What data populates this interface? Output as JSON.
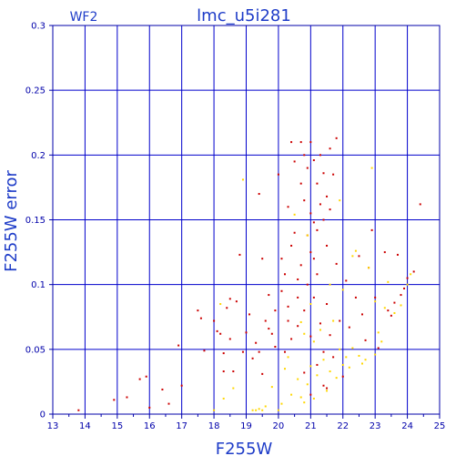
{
  "colors": {
    "frame": "#0000aa",
    "grid": "#0000cc",
    "text": "#1e3cc8",
    "tick_text": "#0000aa",
    "series_primary": "#cc0000",
    "series_secondary": "#ffd700"
  },
  "chart_data": {
    "type": "scatter",
    "title": "lmc_u5i281",
    "subtitle": "WF2",
    "xlabel": "F255W",
    "ylabel": "F255W error",
    "xlim": [
      13,
      25
    ],
    "ylim": [
      0,
      0.3
    ],
    "x_ticks": [
      13,
      14,
      15,
      16,
      17,
      18,
      19,
      20,
      21,
      22,
      23,
      24,
      25
    ],
    "y_ticks": [
      0,
      0.05,
      0.1,
      0.15,
      0.2,
      0.25,
      0.3
    ],
    "y_tick_labels": [
      "0",
      "0.05",
      "0.1",
      "0.15",
      "0.2",
      "0.25",
      "0.3"
    ],
    "grid": true,
    "series": [
      {
        "color": "#cc0000",
        "points": [
          [
            13.8,
            0.003
          ],
          [
            14.9,
            0.011
          ],
          [
            15.3,
            0.013
          ],
          [
            15.7,
            0.027
          ],
          [
            15.9,
            0.029
          ],
          [
            16.0,
            0.005
          ],
          [
            16.4,
            0.019
          ],
          [
            16.6,
            0.008
          ],
          [
            16.9,
            0.053
          ],
          [
            17.0,
            0.022
          ],
          [
            17.5,
            0.08
          ],
          [
            17.6,
            0.074
          ],
          [
            17.7,
            0.049
          ],
          [
            18.0,
            0.072
          ],
          [
            18.1,
            0.064
          ],
          [
            18.2,
            0.062
          ],
          [
            18.3,
            0.047
          ],
          [
            18.3,
            0.033
          ],
          [
            18.4,
            0.082
          ],
          [
            18.5,
            0.089
          ],
          [
            18.5,
            0.058
          ],
          [
            18.6,
            0.033
          ],
          [
            18.7,
            0.087
          ],
          [
            18.8,
            0.123
          ],
          [
            18.9,
            0.048
          ],
          [
            19.0,
            0.063
          ],
          [
            19.1,
            0.077
          ],
          [
            19.2,
            0.043
          ],
          [
            19.3,
            0.055
          ],
          [
            19.4,
            0.17
          ],
          [
            19.4,
            0.048
          ],
          [
            19.5,
            0.12
          ],
          [
            19.5,
            0.031
          ],
          [
            19.6,
            0.072
          ],
          [
            19.7,
            0.092
          ],
          [
            19.7,
            0.066
          ],
          [
            19.8,
            0.062
          ],
          [
            19.9,
            0.08
          ],
          [
            19.9,
            0.052
          ],
          [
            20.0,
            0.185
          ],
          [
            20.1,
            0.12
          ],
          [
            20.1,
            0.095
          ],
          [
            20.2,
            0.048
          ],
          [
            20.2,
            0.108
          ],
          [
            20.3,
            0.16
          ],
          [
            20.3,
            0.083
          ],
          [
            20.3,
            0.072
          ],
          [
            20.4,
            0.21
          ],
          [
            20.4,
            0.13
          ],
          [
            20.4,
            0.058
          ],
          [
            20.5,
            0.195
          ],
          [
            20.5,
            0.14
          ],
          [
            20.6,
            0.104
          ],
          [
            20.6,
            0.068
          ],
          [
            20.6,
            0.09
          ],
          [
            20.7,
            0.21
          ],
          [
            20.7,
            0.178
          ],
          [
            20.7,
            0.115
          ],
          [
            20.8,
            0.2
          ],
          [
            20.8,
            0.165
          ],
          [
            20.8,
            0.08
          ],
          [
            20.8,
            0.032
          ],
          [
            20.9,
            0.19
          ],
          [
            20.9,
            0.138
          ],
          [
            20.9,
            0.1
          ],
          [
            21.0,
            0.21
          ],
          [
            21.0,
            0.155
          ],
          [
            21.0,
            0.125
          ],
          [
            21.0,
            0.06
          ],
          [
            21.0,
            0.015
          ],
          [
            21.1,
            0.196
          ],
          [
            21.1,
            0.148
          ],
          [
            21.1,
            0.12
          ],
          [
            21.1,
            0.09
          ],
          [
            21.2,
            0.178
          ],
          [
            21.2,
            0.142
          ],
          [
            21.2,
            0.108
          ],
          [
            21.2,
            0.038
          ],
          [
            21.3,
            0.2
          ],
          [
            21.3,
            0.162
          ],
          [
            21.3,
            0.07
          ],
          [
            21.4,
            0.186
          ],
          [
            21.4,
            0.15
          ],
          [
            21.4,
            0.048
          ],
          [
            21.4,
            0.022
          ],
          [
            21.5,
            0.168
          ],
          [
            21.5,
            0.13
          ],
          [
            21.5,
            0.085
          ],
          [
            21.5,
            0.02
          ],
          [
            21.6,
            0.205
          ],
          [
            21.6,
            0.158
          ],
          [
            21.6,
            0.061
          ],
          [
            21.7,
            0.185
          ],
          [
            21.7,
            0.044
          ],
          [
            21.8,
            0.213
          ],
          [
            21.8,
            0.116
          ],
          [
            21.9,
            0.072
          ],
          [
            22.0,
            0.029
          ],
          [
            22.1,
            0.103
          ],
          [
            22.2,
            0.067
          ],
          [
            22.4,
            0.09
          ],
          [
            22.5,
            0.122
          ],
          [
            22.6,
            0.077
          ],
          [
            22.7,
            0.057
          ],
          [
            22.8,
            0.113
          ],
          [
            22.9,
            0.142
          ],
          [
            23.0,
            0.09
          ],
          [
            23.1,
            0.051
          ],
          [
            23.3,
            0.125
          ],
          [
            23.4,
            0.08
          ],
          [
            23.5,
            0.076
          ],
          [
            23.6,
            0.086
          ],
          [
            23.7,
            0.123
          ],
          [
            23.8,
            0.092
          ],
          [
            23.9,
            0.097
          ],
          [
            24.0,
            0.105
          ],
          [
            24.2,
            0.11
          ],
          [
            24.4,
            0.162
          ]
        ]
      },
      {
        "color": "#ffd700",
        "points": [
          [
            18.0,
            0.003
          ],
          [
            18.2,
            0.085
          ],
          [
            18.3,
            0.012
          ],
          [
            18.6,
            0.02
          ],
          [
            18.9,
            0.181
          ],
          [
            19.2,
            0.003
          ],
          [
            19.3,
            0.003
          ],
          [
            19.4,
            0.004
          ],
          [
            19.5,
            0.003
          ],
          [
            19.6,
            0.006
          ],
          [
            19.8,
            0.021
          ],
          [
            20.0,
            0.003
          ],
          [
            20.1,
            0.008
          ],
          [
            20.2,
            0.035
          ],
          [
            20.3,
            0.044
          ],
          [
            20.4,
            0.015
          ],
          [
            20.5,
            0.154
          ],
          [
            20.6,
            0.027
          ],
          [
            20.7,
            0.013
          ],
          [
            20.7,
            0.071
          ],
          [
            20.8,
            0.009
          ],
          [
            20.8,
            0.062
          ],
          [
            20.9,
            0.138
          ],
          [
            20.9,
            0.023
          ],
          [
            21.0,
            0.085
          ],
          [
            21.0,
            0.037
          ],
          [
            21.1,
            0.056
          ],
          [
            21.1,
            0.012
          ],
          [
            21.2,
            0.03
          ],
          [
            21.3,
            0.065
          ],
          [
            21.4,
            0.042
          ],
          [
            21.5,
            0.018
          ],
          [
            21.6,
            0.033
          ],
          [
            21.6,
            0.1
          ],
          [
            21.7,
            0.072
          ],
          [
            21.8,
            0.028
          ],
          [
            21.9,
            0.05
          ],
          [
            21.9,
            0.165
          ],
          [
            22.0,
            0.038
          ],
          [
            22.0,
            0.096
          ],
          [
            22.1,
            0.044
          ],
          [
            22.2,
            0.036
          ],
          [
            22.3,
            0.051
          ],
          [
            22.3,
            0.122
          ],
          [
            22.4,
            0.126
          ],
          [
            22.5,
            0.045
          ],
          [
            22.6,
            0.039
          ],
          [
            22.7,
            0.042
          ],
          [
            22.8,
            0.113
          ],
          [
            22.9,
            0.19
          ],
          [
            23.0,
            0.087
          ],
          [
            23.0,
            0.046
          ],
          [
            23.1,
            0.063
          ],
          [
            23.2,
            0.056
          ],
          [
            23.3,
            0.082
          ],
          [
            23.4,
            0.102
          ],
          [
            23.6,
            0.078
          ],
          [
            23.8,
            0.084
          ],
          [
            24.0,
            0.1
          ],
          [
            24.1,
            0.108
          ]
        ]
      }
    ]
  }
}
